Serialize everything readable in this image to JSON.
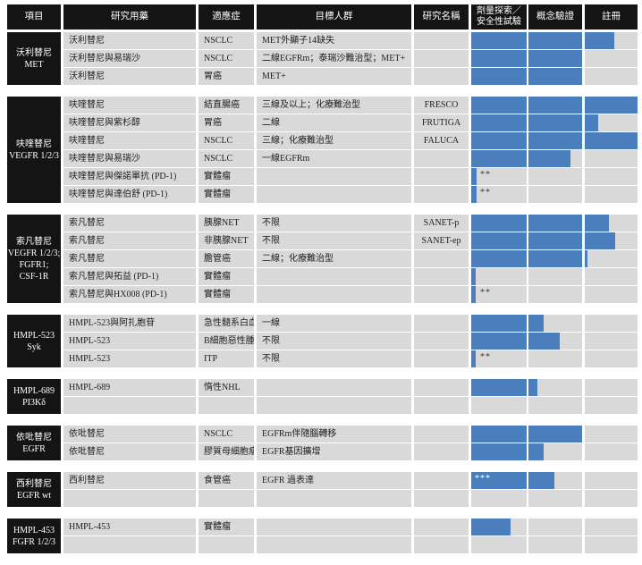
{
  "colors": {
    "bar": "#4a7ebc",
    "header_bg": "#141414",
    "row_bg": "#d9d9d9",
    "header_text": "#ffffff",
    "body_text": "#1f1f1f"
  },
  "header": {
    "project": "項目",
    "drug": "研究用藥",
    "indication": "適應症",
    "population": "目標人群",
    "study": "研究名稱",
    "stage_dose_line1": "劑量探索／",
    "stage_dose_line2": "安全性試驗",
    "stage_concept": "概念驗證",
    "stage_registration": "註冊"
  },
  "stages": [
    "劑量探索／安全性試驗",
    "概念驗證",
    "註冊"
  ],
  "groups": [
    {
      "project": [
        "沃利替尼",
        "MET"
      ],
      "rows": [
        {
          "drug": "沃利替尼",
          "indication": "NSCLC",
          "population": "MET外顯子14缺失",
          "study": "",
          "progress": 86,
          "marker": "",
          "marker_inside": false
        },
        {
          "drug": "沃利替尼與易瑞沙",
          "indication": "NSCLC",
          "population": "二線EGFRm；泰瑞沙難治型；MET+",
          "study": "",
          "progress": 66.7,
          "marker": "",
          "marker_inside": false
        },
        {
          "drug": "沃利替尼",
          "indication": "胃癌",
          "population": "MET+",
          "study": "",
          "progress": 66.7,
          "marker": "",
          "marker_inside": false
        }
      ]
    },
    {
      "project": [
        "呋喹替尼",
        "VEGFR 1/2/3"
      ],
      "rows": [
        {
          "drug": "呋喹替尼",
          "indication": "結直腸癌",
          "population": "三線及以上；化療難治型",
          "study": "FRESCO",
          "progress": 100,
          "marker": "",
          "marker_inside": false
        },
        {
          "drug": "呋喹替尼與紫杉醇",
          "indication": "胃癌",
          "population": "二線",
          "study": "FRUTIGA",
          "progress": 76.3,
          "marker": "",
          "marker_inside": false
        },
        {
          "drug": "呋喹替尼",
          "indication": "NSCLC",
          "population": "三線；化療難治型",
          "study": "FALUCA",
          "progress": 100,
          "marker": "",
          "marker_inside": false
        },
        {
          "drug": "呋喹替尼與易瑞沙",
          "indication": "NSCLC",
          "population": "一線EGFRm",
          "study": "",
          "progress": 59.7,
          "marker": "",
          "marker_inside": false
        },
        {
          "drug": "呋喹替尼與傑諾單抗 (PD-1)",
          "indication": "實體瘤",
          "population": "",
          "study": "",
          "progress": 3.2,
          "marker": "**",
          "marker_inside": false
        },
        {
          "drug": "呋喹替尼與達伯舒 (PD-1)",
          "indication": "實體瘤",
          "population": "",
          "study": "",
          "progress": 3.2,
          "marker": "**",
          "marker_inside": false
        }
      ]
    },
    {
      "project": [
        "索凡替尼",
        "VEGFR 1/2/3;",
        "FGFR1;",
        "CSF-1R"
      ],
      "rows": [
        {
          "drug": "索凡替尼",
          "indication": "胰腺NET",
          "population": "不限",
          "study": "SANET-p",
          "progress": 82.8,
          "marker": "",
          "marker_inside": false
        },
        {
          "drug": "索凡替尼",
          "indication": "非胰腺NET",
          "population": "不限",
          "study": "SANET-ep",
          "progress": 86.6,
          "marker": "",
          "marker_inside": false
        },
        {
          "drug": "索凡替尼",
          "indication": "膽管癌",
          "population": "二線；化療難治型",
          "study": "",
          "progress": 69.9,
          "marker": "",
          "marker_inside": false
        },
        {
          "drug": "索凡替尼與拓益 (PD-1)",
          "indication": "實體瘤",
          "population": "",
          "study": "",
          "progress": 2.7,
          "marker": "",
          "marker_inside": false
        },
        {
          "drug": "索凡替尼與HX008 (PD-1)",
          "indication": "實體瘤",
          "population": "",
          "study": "",
          "progress": 2.7,
          "marker": "**",
          "marker_inside": false
        }
      ]
    },
    {
      "project": [
        "HMPL-523",
        "Syk"
      ],
      "rows": [
        {
          "drug": "HMPL-523與阿扎胞苷",
          "indication": "急性髓系白血病",
          "population": "一線",
          "study": "",
          "progress": 43.5,
          "marker": "",
          "marker_inside": false
        },
        {
          "drug": "HMPL-523",
          "indication": "B細胞惡性腫瘤",
          "population": "不限",
          "study": "",
          "progress": 53.2,
          "marker": "",
          "marker_inside": false
        },
        {
          "drug": "HMPL-523",
          "indication": "ITP",
          "population": "不限",
          "study": "",
          "progress": 2.7,
          "marker": "**",
          "marker_inside": false
        }
      ]
    },
    {
      "project": [
        "HMPL-689",
        "PI3Kδ"
      ],
      "rows": [
        {
          "drug": "HMPL-689",
          "indication": "惰性NHL",
          "population": "",
          "study": "",
          "progress": 39.8,
          "marker": "",
          "marker_inside": false
        },
        {
          "drug": "",
          "indication": "",
          "population": "",
          "study": "",
          "progress": 0,
          "marker": "",
          "marker_inside": false
        }
      ]
    },
    {
      "project": [
        "依吡替尼",
        "EGFR"
      ],
      "rows": [
        {
          "drug": "依吡替尼",
          "indication": "NSCLC",
          "population": "EGFRm伴隨腦轉移",
          "study": "",
          "progress": 66.7,
          "marker": "",
          "marker_inside": false
        },
        {
          "drug": "依吡替尼",
          "indication": "膠質母細胞瘤",
          "population": "EGFR基因擴增",
          "study": "",
          "progress": 43.5,
          "marker": "",
          "marker_inside": false
        }
      ]
    },
    {
      "project": [
        "西利替尼",
        "EGFR wt"
      ],
      "rows": [
        {
          "drug": "西利替尼",
          "indication": "食管癌",
          "population": "EGFR 過表達",
          "study": "",
          "progress": 50,
          "marker": "***",
          "marker_inside": true
        },
        {
          "drug": "",
          "indication": "",
          "population": "",
          "study": "",
          "progress": 0,
          "marker": "",
          "marker_inside": false
        }
      ]
    },
    {
      "project": [
        "HMPL-453",
        "FGFR 1/2/3"
      ],
      "rows": [
        {
          "drug": "HMPL-453",
          "indication": "實體瘤",
          "population": "",
          "study": "",
          "progress": 23.7,
          "marker": "",
          "marker_inside": false
        },
        {
          "drug": "",
          "indication": "",
          "population": "",
          "study": "",
          "progress": 0,
          "marker": "",
          "marker_inside": false
        }
      ]
    }
  ]
}
